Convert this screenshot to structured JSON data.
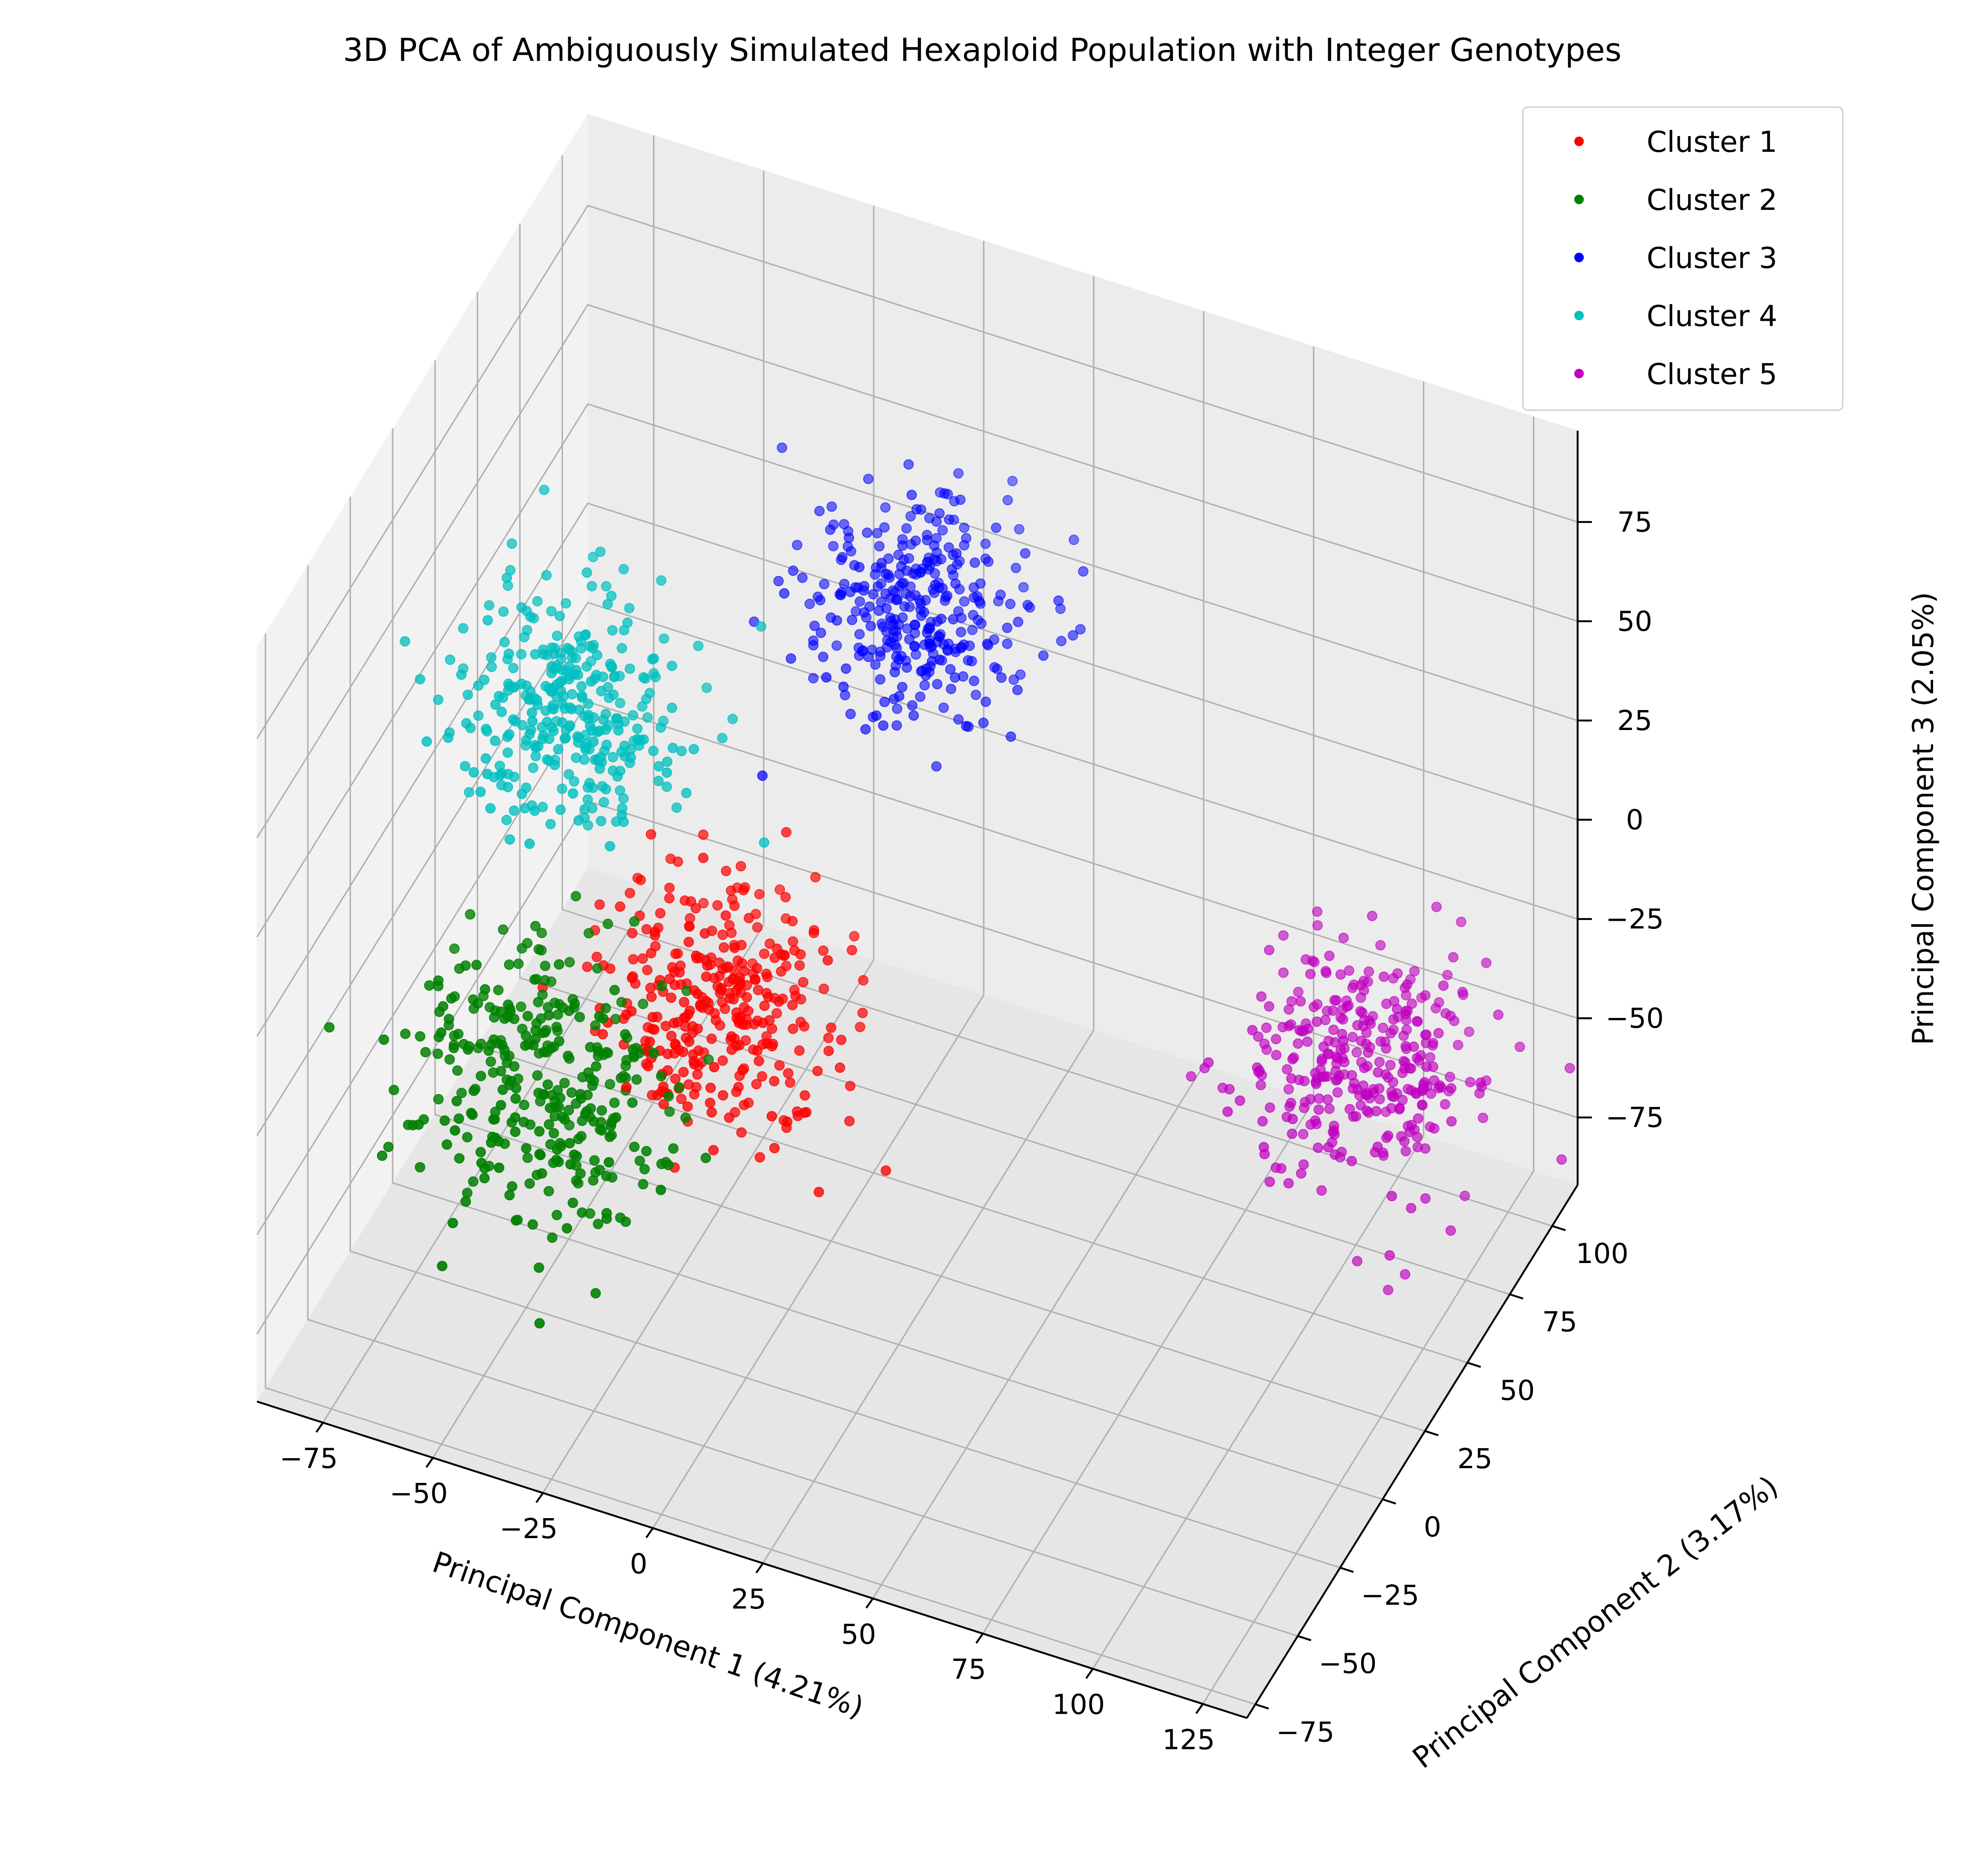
{
  "chart_data": {
    "type": "scatter",
    "projection": "3d",
    "title": "3D PCA of Ambiguously Simulated Hexaploid Population with Integer Genotypes",
    "xlabel": "Principal Component 1 (4.21%)",
    "ylabel": "Principal Component 2 (3.17%)",
    "zlabel": "Principal Component 3 (2.05%)",
    "xlim": [
      -90,
      135
    ],
    "ylim": [
      -80,
      115
    ],
    "zlim": [
      -92,
      98
    ],
    "x_ticks": [
      "−75",
      "−50",
      "−25",
      "0",
      "25",
      "50",
      "75",
      "100",
      "125"
    ],
    "y_ticks": [
      "−75",
      "−50",
      "−25",
      "0",
      "25",
      "50",
      "75",
      "100"
    ],
    "z_ticks": [
      "−75",
      "−50",
      "−25",
      "0",
      "25",
      "50",
      "75"
    ],
    "grid": true,
    "legend_position": "top-right",
    "series": [
      {
        "name": "Cluster 1",
        "color": "#ff0000",
        "center": [
          -22,
          12,
          -30
        ],
        "spread": 13,
        "count": 330
      },
      {
        "name": "Cluster 2",
        "color": "#008000",
        "center": [
          -45,
          -30,
          -30
        ],
        "spread": 14,
        "count": 330
      },
      {
        "name": "Cluster 3",
        "color": "#0000ff",
        "center": [
          -2,
          80,
          28
        ],
        "spread": 12,
        "count": 330
      },
      {
        "name": "Cluster 4",
        "color": "#00bfbf",
        "center": [
          -52,
          5,
          35
        ],
        "spread": 13,
        "count": 330
      },
      {
        "name": "Cluster 5",
        "color": "#bf00bf",
        "center": [
          110,
          50,
          -26
        ],
        "spread": 13,
        "count": 330
      }
    ]
  }
}
